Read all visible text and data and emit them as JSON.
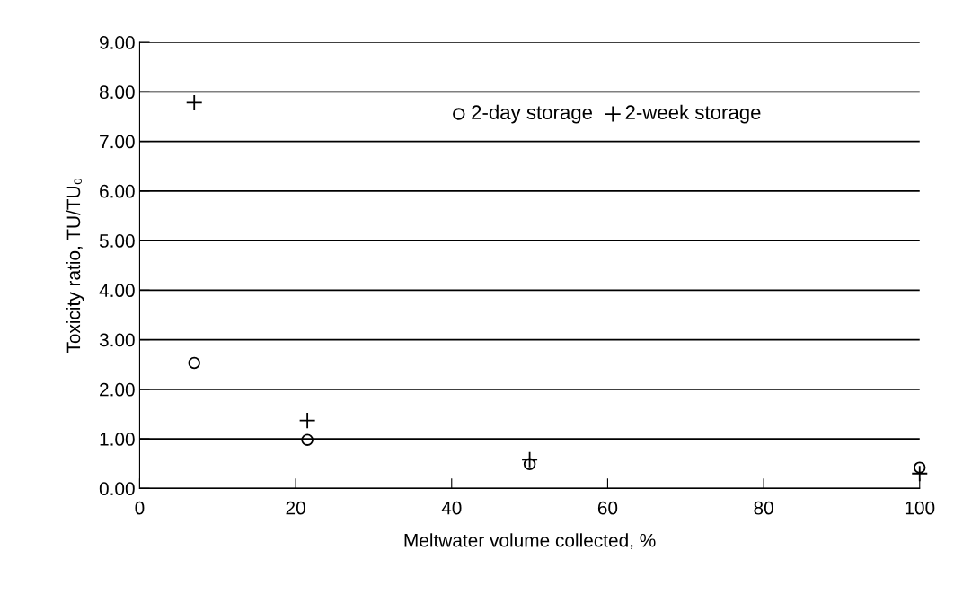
{
  "chart_data": {
    "type": "scatter",
    "xlabel": "Meltwater volume collected, %",
    "ylabel": "Toxicity ratio, TU/TU₀",
    "xlim": [
      0,
      100
    ],
    "xticks": [
      0,
      20,
      40,
      60,
      80,
      100
    ],
    "ylim": [
      0,
      9
    ],
    "yticks": [
      {
        "value": 0,
        "label": "0.00"
      },
      {
        "value": 1,
        "label": "1.00"
      },
      {
        "value": 2,
        "label": "2.00"
      },
      {
        "value": 3,
        "label": "3.00"
      },
      {
        "value": 4,
        "label": "4.00"
      },
      {
        "value": 5,
        "label": "5.00"
      },
      {
        "value": 6,
        "label": "6.00"
      },
      {
        "value": 7,
        "label": "7.00"
      },
      {
        "value": 8,
        "label": "8.00"
      },
      {
        "value": 9,
        "label": "9.00"
      }
    ],
    "grid": "y",
    "legend": "top right",
    "series": [
      {
        "name": "2-day storage",
        "color": "#000000",
        "marker": "circle",
        "x": [
          7,
          21.5,
          50,
          100
        ],
        "values": [
          2.53,
          0.98,
          0.49,
          0.42
        ]
      },
      {
        "name": "2-week storage",
        "color": "#000000",
        "marker": "cross",
        "x": [
          7,
          21.5,
          50,
          100
        ],
        "values": [
          7.78,
          1.37,
          0.58,
          0.3
        ]
      }
    ]
  }
}
